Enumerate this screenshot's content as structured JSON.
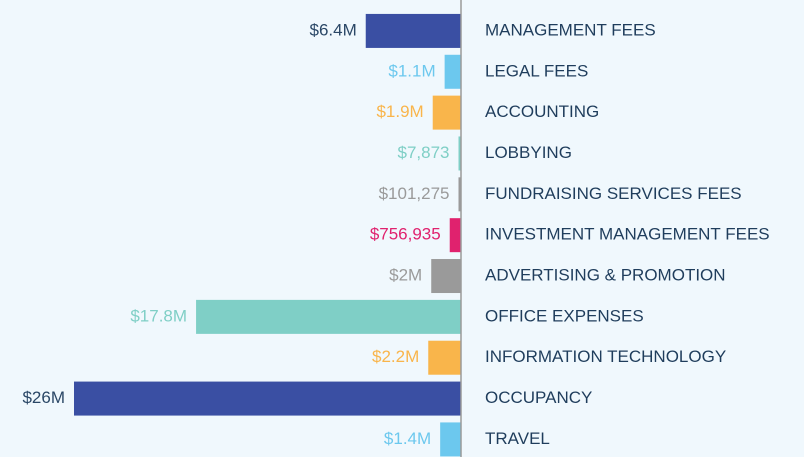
{
  "chart_data": {
    "type": "bar",
    "orientation": "horizontal",
    "categories": [
      "MANAGEMENT FEES",
      "LEGAL FEES",
      "ACCOUNTING",
      "LOBBYING",
      "FUNDRAISING SERVICES FEES",
      "INVESTMENT MANAGEMENT FEES",
      "ADVERTISING & PROMOTION",
      "OFFICE EXPENSES",
      "INFORMATION TECHNOLOGY",
      "OCCUPANCY",
      "TRAVEL"
    ],
    "values": [
      6400000,
      1100000,
      1900000,
      7873,
      101275,
      756935,
      2000000,
      17800000,
      2200000,
      26000000,
      1400000
    ],
    "value_labels": [
      "$6.4M",
      "$1.1M",
      "$1.9M",
      "$7,873",
      "$101,275",
      "$756,935",
      "$2M",
      "$17.8M",
      "$2.2M",
      "$26M",
      "$1.4M"
    ],
    "colors": [
      "#3a4fa3",
      "#6cc8ee",
      "#f9b54b",
      "#7fcfc6",
      "#9a9a9a",
      "#e0226e",
      "#9a9a9a",
      "#7fcfc6",
      "#f9b54b",
      "#3a4fa3",
      "#6cc8ee"
    ],
    "label_colors": [
      "#2a4766",
      "#6cc8ee",
      "#f9b54b",
      "#7fcfc6",
      "#9a9a9a",
      "#e0226e",
      "#9a9a9a",
      "#7fcfc6",
      "#f9b54b",
      "#2a4766",
      "#6cc8ee"
    ]
  }
}
